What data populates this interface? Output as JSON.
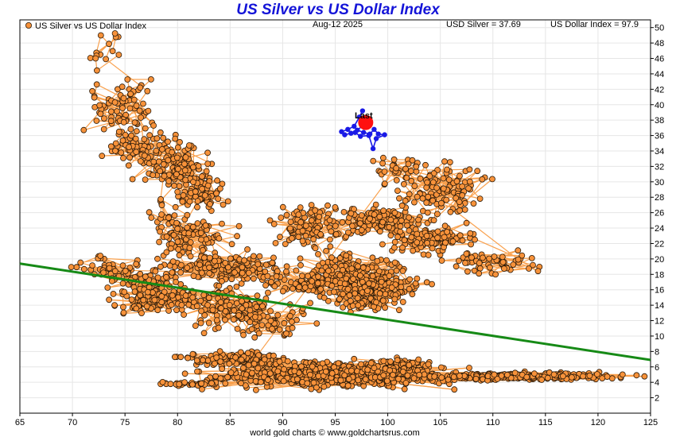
{
  "chart_data": {
    "type": "scatter",
    "title": "US Silver vs US Dollar Index",
    "date_label": "Aug-12  2025",
    "silver_label": "USD Silver = 37.69",
    "dollar_label": "US Dollar Index = 97.9",
    "legend_label": "US Silver vs US Dollar Index",
    "last_label": "Last",
    "footer": "world gold charts © www.goldchartsrus.com",
    "xlim": [
      65,
      125
    ],
    "ylim": [
      0,
      51
    ],
    "x_ticks": [
      "65",
      "70",
      "75",
      "80",
      "85",
      "90",
      "95",
      "100",
      "105",
      "110",
      "115",
      "120",
      "125"
    ],
    "y_ticks": [
      "2",
      "4",
      "6",
      "8",
      "10",
      "12",
      "14",
      "16",
      "18",
      "20",
      "22",
      "24",
      "26",
      "28",
      "30",
      "32",
      "34",
      "36",
      "38",
      "40",
      "42",
      "44",
      "46",
      "48",
      "50"
    ],
    "grid": true,
    "legend_position": "top-left",
    "colors": {
      "history": "#f7923a",
      "history_edge": "#2a1a0a",
      "history_line": "#f9a14e",
      "recent": "#1a1ae6",
      "last": "#ff1010",
      "trend": "#168a16",
      "title": "#1414d8"
    },
    "trendline": {
      "x": [
        65,
        125
      ],
      "y": [
        19.4,
        6.9
      ]
    },
    "last_point": {
      "x": 97.9,
      "y": 37.69
    },
    "clusters": [
      {
        "cx": 73.4,
        "cy": 47.2,
        "rx": 1.3,
        "ry": 2.4,
        "n": 14
      },
      {
        "cx": 74.8,
        "cy": 40.0,
        "rx": 2.4,
        "ry": 2.8,
        "n": 70
      },
      {
        "cx": 76.5,
        "cy": 34.5,
        "rx": 2.6,
        "ry": 2.8,
        "n": 85
      },
      {
        "cx": 80.0,
        "cy": 32.0,
        "rx": 2.5,
        "ry": 3.2,
        "n": 110
      },
      {
        "cx": 82.3,
        "cy": 28.5,
        "rx": 2.2,
        "ry": 2.2,
        "n": 70
      },
      {
        "cx": 79.0,
        "cy": 25.0,
        "rx": 2.0,
        "ry": 2.0,
        "n": 30
      },
      {
        "cx": 81.5,
        "cy": 22.5,
        "rx": 3.0,
        "ry": 2.0,
        "n": 80
      },
      {
        "cx": 84.0,
        "cy": 18.8,
        "rx": 5.0,
        "ry": 1.6,
        "n": 160
      },
      {
        "cx": 73.5,
        "cy": 18.5,
        "rx": 2.6,
        "ry": 1.5,
        "n": 45
      },
      {
        "cx": 77.0,
        "cy": 17.0,
        "rx": 3.0,
        "ry": 1.5,
        "n": 70
      },
      {
        "cx": 78.0,
        "cy": 14.5,
        "rx": 4.0,
        "ry": 1.3,
        "n": 110
      },
      {
        "cx": 84.5,
        "cy": 13.5,
        "rx": 3.5,
        "ry": 2.4,
        "n": 110
      },
      {
        "cx": 89.0,
        "cy": 12.0,
        "rx": 3.0,
        "ry": 2.2,
        "n": 60
      },
      {
        "cx": 92.0,
        "cy": 17.0,
        "rx": 3.5,
        "ry": 1.5,
        "n": 80
      },
      {
        "cx": 96.5,
        "cy": 18.0,
        "rx": 3.5,
        "ry": 2.5,
        "n": 170
      },
      {
        "cx": 99.5,
        "cy": 16.5,
        "rx": 3.5,
        "ry": 1.5,
        "n": 110
      },
      {
        "cx": 97.5,
        "cy": 14.5,
        "rx": 3.0,
        "ry": 1.2,
        "n": 70
      },
      {
        "cx": 92.5,
        "cy": 24.5,
        "rx": 3.0,
        "ry": 2.3,
        "n": 100
      },
      {
        "cx": 99.5,
        "cy": 25.0,
        "rx": 4.0,
        "ry": 1.5,
        "n": 130
      },
      {
        "cx": 104.0,
        "cy": 22.5,
        "rx": 3.5,
        "ry": 1.5,
        "n": 120
      },
      {
        "cx": 110.0,
        "cy": 19.5,
        "rx": 3.5,
        "ry": 1.2,
        "n": 55
      },
      {
        "cx": 105.5,
        "cy": 29.0,
        "rx": 3.5,
        "ry": 3.0,
        "n": 110
      },
      {
        "cx": 101.0,
        "cy": 31.5,
        "rx": 1.8,
        "ry": 1.5,
        "n": 30
      },
      {
        "cx": 86.0,
        "cy": 7.0,
        "rx": 5.0,
        "ry": 0.8,
        "n": 140
      },
      {
        "cx": 94.0,
        "cy": 5.0,
        "rx": 9.0,
        "ry": 1.4,
        "n": 550
      },
      {
        "cx": 101.0,
        "cy": 6.0,
        "rx": 3.0,
        "ry": 1.0,
        "n": 90
      },
      {
        "cx": 112.0,
        "cy": 4.8,
        "rx": 9.0,
        "ry": 0.4,
        "n": 260
      },
      {
        "cx": 81.5,
        "cy": 3.8,
        "rx": 3.0,
        "ry": 0.25,
        "n": 35
      }
    ],
    "recent_points": [
      [
        97.6,
        39.2
      ],
      [
        97.3,
        38.4
      ],
      [
        96.8,
        37.2
      ],
      [
        96.2,
        36.8
      ],
      [
        95.6,
        36.5
      ],
      [
        95.9,
        36.1
      ],
      [
        96.5,
        36.3
      ],
      [
        97.1,
        36.7
      ],
      [
        97.7,
        36.4
      ],
      [
        98.3,
        36.2
      ],
      [
        98.7,
        36.8
      ],
      [
        99.1,
        36.2
      ],
      [
        99.7,
        36.1
      ],
      [
        98.9,
        35.6
      ],
      [
        98.6,
        34.3
      ],
      [
        98.2,
        36.0
      ],
      [
        97.4,
        35.9
      ],
      [
        96.9,
        36.4
      ],
      [
        97.9,
        37.69
      ]
    ]
  }
}
